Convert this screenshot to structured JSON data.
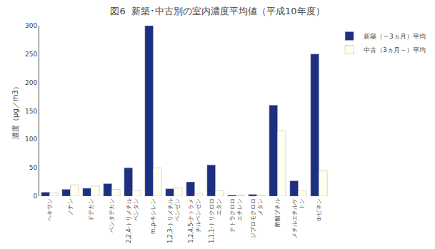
{
  "chart_data": {
    "type": "bar",
    "title": "図6  新築･中古別の室内濃度平均値（平成10年度）",
    "ylabel": "濃度（μg／m3）",
    "categories": [
      "ヘキサン",
      "ノナン",
      "ドデカン",
      "ペンタデカン",
      "2,2,4-トリメチル\nペンタン",
      "m,p-キシレン",
      "1,2,3-トリメチル\nベンゼン",
      "1,2,4,5-テトラメ\nチルベンゼン",
      "1,1,1-トリクロロ\nエタン",
      "テトラクロロ\nエチレン",
      "ジブロモクロロ\nメタン",
      "酢酸ブチル",
      "メチルエチルケ\nトン",
      "α-ピネン"
    ],
    "series": [
      {
        "name": "新築（～3ヵ月）平均",
        "color": "#1C2F80",
        "values": [
          7.0,
          12.0,
          14.0,
          22.0,
          50.0,
          300.0,
          13.0,
          25.0,
          55.0,
          2.0,
          3.0,
          160.0,
          27.0,
          250.0
        ]
      },
      {
        "name": "中古（3ヵ月～）平均",
        "color": "#FFFFF0",
        "values": [
          6.0,
          20.0,
          18.0,
          12.0,
          10.0,
          50.0,
          15.0,
          5.0,
          10.0,
          2.0,
          2.0,
          115.0,
          10.0,
          45.0
        ]
      }
    ],
    "ylim": [
      0,
      300.0
    ],
    "yticks": [
      0.0,
      50.0,
      100.0,
      150.0,
      200.0,
      250.0,
      300.0
    ],
    "grid": false,
    "legend": "upper right"
  }
}
